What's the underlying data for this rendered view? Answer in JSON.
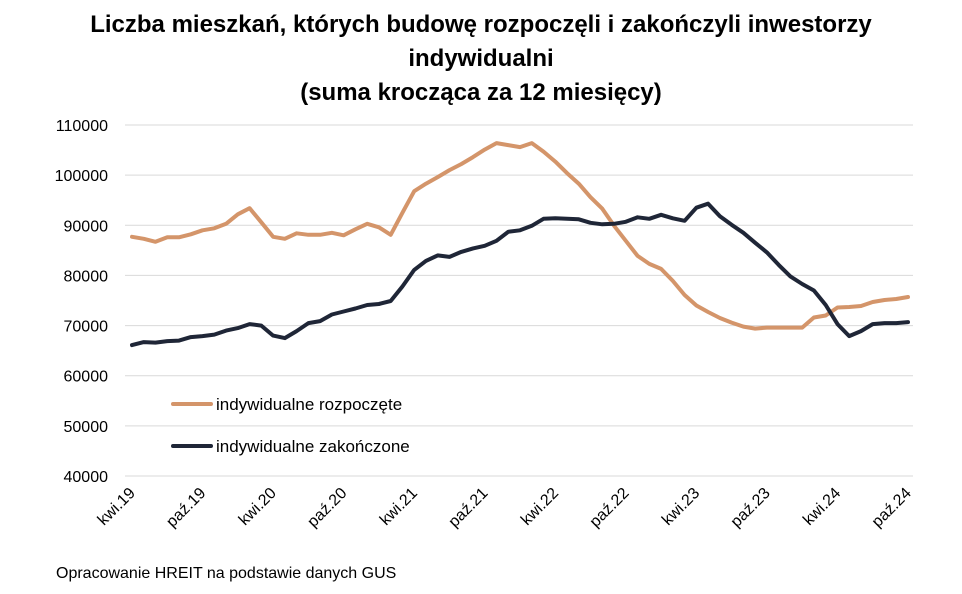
{
  "chart_data": {
    "type": "line",
    "title_lines": [
      "Liczba mieszkań, których budowę rozpoczęli i zakończyli inwestorzy",
      "indywidualni",
      "(suma krocząca za 12 miesięcy)"
    ],
    "xlabel": "",
    "ylabel": "",
    "ylim": [
      40000,
      110000
    ],
    "y_ticks": [
      "40000",
      "50000",
      "60000",
      "70000",
      "80000",
      "90000",
      "100000",
      "110000"
    ],
    "x_tick_labels": [
      "kwi.19",
      "paź.19",
      "kwi.20",
      "paź.20",
      "kwi.21",
      "paź.21",
      "kwi.22",
      "paź.22",
      "kwi.23",
      "paź.23",
      "kwi.24",
      "paź.24"
    ],
    "x_start_month": "2019-04",
    "grid": true,
    "legend_position": "lower-left",
    "series": [
      {
        "name": "indywidualne rozpoczęte",
        "color": "#D4956A",
        "values": [
          87700,
          87300,
          86700,
          87600,
          87600,
          88200,
          89000,
          89400,
          90300,
          92200,
          93400,
          90600,
          87700,
          87300,
          88400,
          88100,
          88100,
          88500,
          88000,
          89200,
          90300,
          89600,
          88100,
          92500,
          96800,
          98300,
          99600,
          101000,
          102200,
          103600,
          105100,
          106400,
          106000,
          105600,
          106400,
          104700,
          102700,
          100400,
          98300,
          95600,
          93300,
          89900,
          86900,
          83900,
          82300,
          81300,
          78900,
          76100,
          74000,
          72700,
          71500,
          70600,
          69800,
          69400,
          69600,
          69600,
          69600,
          69600,
          71600,
          72000,
          73600,
          73700,
          73900,
          74700,
          75100,
          75300,
          75700
        ]
      },
      {
        "name": "indywidualne zakończone",
        "color": "#1F2637",
        "values": [
          66100,
          66700,
          66600,
          66900,
          67000,
          67700,
          67900,
          68200,
          69000,
          69500,
          70300,
          70000,
          68000,
          67500,
          68900,
          70500,
          70900,
          72200,
          72800,
          73400,
          74100,
          74300,
          74900,
          77800,
          81100,
          82900,
          84000,
          83700,
          84700,
          85400,
          85900,
          86900,
          88700,
          89000,
          89900,
          91300,
          91400,
          91300,
          91200,
          90500,
          90200,
          90300,
          90700,
          91600,
          91300,
          92100,
          91400,
          90900,
          93500,
          94300,
          91800,
          90100,
          88500,
          86500,
          84600,
          82100,
          79800,
          78300,
          77000,
          74100,
          70300,
          67900,
          68900,
          70300,
          70500,
          70500,
          70700
        ]
      }
    ]
  },
  "source_note": "Opracowanie HREIT na podstawie danych GUS"
}
